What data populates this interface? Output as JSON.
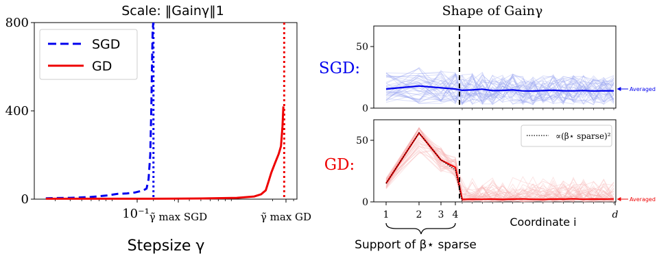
{
  "left_title": "Scale: ‖Gainγ‖1",
  "left_xlabel": "Stepsize γ",
  "left_xticks": {
    "decade": "10⁻¹",
    "sgd_max": "γ̃ max SGD",
    "gd_max": "γ̃ max GD"
  },
  "left_yticks": [
    "0",
    "400",
    "800"
  ],
  "legend": {
    "sgd": "SGD",
    "gd": "GD"
  },
  "right_title": "Shape of Gainγ",
  "row_labels": {
    "sgd": "SGD:",
    "gd": "GD:"
  },
  "averaged_label": "Averaged",
  "gd_inset_legend": "∝(β⋆ sparse)²",
  "right_xlabel": "Coordinate i",
  "support_label": "Support of β⋆ sparse",
  "right_xticks": [
    "1",
    "2",
    "3",
    "4",
    "d"
  ],
  "right_yticks": [
    "0",
    "50"
  ],
  "colors": {
    "sgd": "#0000ee",
    "gd": "#ee0000",
    "sgd_light": "#9aa6f0",
    "gd_light": "#f5b3b3"
  },
  "chart_data": [
    {
      "type": "line",
      "title": "Scale: ‖Gainγ‖1",
      "xlabel": "Stepsize γ",
      "ylabel": "",
      "xscale": "log",
      "xlim": [
        0.02,
        3.2
      ],
      "ylim": [
        0,
        800
      ],
      "legend_position": "top-left",
      "vlines": [
        {
          "series": "SGD",
          "x": 0.2,
          "style": "dotted"
        },
        {
          "series": "GD",
          "x": 2.5,
          "style": "dotted"
        }
      ],
      "series": [
        {
          "name": "SGD",
          "style": "dashed",
          "color": "#0000ee",
          "x": [
            0.025,
            0.04,
            0.06,
            0.08,
            0.1,
            0.12,
            0.14,
            0.155,
            0.165,
            0.175,
            0.182,
            0.188,
            0.192,
            0.195,
            0.197,
            0.199
          ],
          "y": [
            4,
            6,
            10,
            16,
            24,
            26,
            30,
            36,
            40,
            48,
            90,
            200,
            420,
            650,
            760,
            800
          ]
        },
        {
          "name": "GD",
          "style": "solid",
          "color": "#ee0000",
          "x": [
            0.025,
            0.1,
            0.2,
            0.5,
            1.0,
            1.4,
            1.6,
            1.75,
            1.85,
            1.95,
            2.1,
            2.25,
            2.35,
            2.42,
            2.46
          ],
          "y": [
            2,
            2,
            2,
            3,
            6,
            12,
            22,
            40,
            80,
            120,
            165,
            205,
            240,
            330,
            420
          ]
        }
      ]
    },
    {
      "type": "line",
      "title": "Shape of Gainγ",
      "row": "SGD",
      "xlabel": "",
      "ylim": [
        0,
        60
      ],
      "x": [
        1,
        2,
        3,
        4,
        5,
        6,
        7,
        8,
        9,
        10,
        11,
        12,
        13,
        14,
        15,
        16,
        17,
        18,
        19,
        20
      ],
      "series": [
        {
          "name": "Averaged",
          "values": [
            15.5,
            18,
            16.5,
            15.5,
            14.5,
            14.8,
            15.4,
            14.2,
            14.4,
            14.8,
            14.0,
            13.9,
            14.2,
            14.5,
            14.1,
            14.0,
            14.3,
            13.9,
            14.1,
            14.0
          ]
        }
      ]
    },
    {
      "type": "line",
      "row": "GD",
      "xlabel": "Coordinate i",
      "ylim": [
        0,
        60
      ],
      "x": [
        1,
        2,
        3,
        4,
        5,
        6,
        7,
        8,
        9,
        10,
        11,
        12,
        13,
        14,
        15,
        16,
        17,
        18,
        19,
        20
      ],
      "series": [
        {
          "name": "Averaged",
          "values": [
            15,
            56,
            34,
            28,
            2,
            2.2,
            2.1,
            2.3,
            2.0,
            2.2,
            2.4,
            2.1,
            2.0,
            2.3,
            2.2,
            2.5,
            2.1,
            2.3,
            2.2,
            2.4
          ]
        },
        {
          "name": "∝(β⋆ sparse)²",
          "style": "dotted",
          "values": [
            15,
            56,
            34,
            26,
            0,
            0,
            0,
            0,
            0,
            0,
            0,
            0,
            0,
            0,
            0,
            0,
            0,
            0,
            0,
            0
          ]
        }
      ]
    }
  ]
}
